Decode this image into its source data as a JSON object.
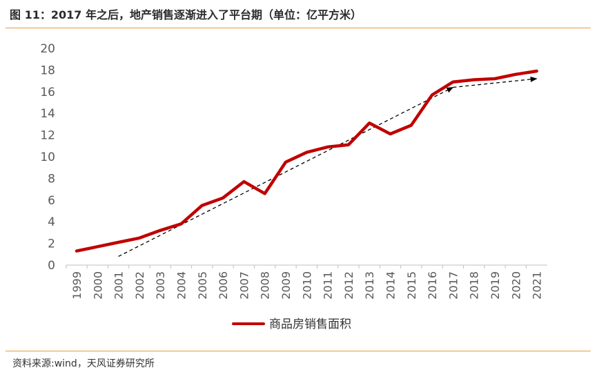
{
  "header": {
    "title": "图 11：2017 年之后，地产销售逐渐进入了平台期（单位：亿平方米）"
  },
  "footer": {
    "source": "资料来源:wind，天风证券研究所"
  },
  "colors": {
    "series": "#c00000",
    "accent_rule": "#e89a3c",
    "trend": "#000000"
  },
  "chart_data": {
    "type": "line",
    "title": "",
    "xlabel": "",
    "ylabel": "",
    "ylim": [
      0,
      20
    ],
    "yticks": [
      "0",
      "2",
      "4",
      "6",
      "8",
      "10",
      "12",
      "14",
      "16",
      "18",
      "20"
    ],
    "grid": false,
    "legend": "bottom",
    "categories": [
      "1999",
      "2000",
      "2001",
      "2002",
      "2003",
      "2004",
      "2005",
      "2006",
      "2007",
      "2008",
      "2009",
      "2010",
      "2011",
      "2012",
      "2013",
      "2014",
      "2015",
      "2016",
      "2017",
      "2018",
      "2019",
      "2020",
      "2021"
    ],
    "series": [
      {
        "name": "商品房销售面积",
        "values": [
          1.3,
          1.7,
          2.1,
          2.5,
          3.2,
          3.8,
          5.5,
          6.2,
          7.7,
          6.6,
          9.5,
          10.4,
          10.9,
          11.1,
          13.1,
          12.1,
          12.9,
          15.7,
          16.9,
          17.1,
          17.2,
          17.6,
          17.9
        ]
      }
    ],
    "trend_arrows": [
      {
        "from": {
          "x": "2001",
          "y": 0.8
        },
        "to": {
          "x": "2017",
          "y": 16.4
        }
      },
      {
        "from": {
          "x": "2017",
          "y": 16.4
        },
        "to": {
          "x": "2021",
          "y": 17.2
        }
      }
    ]
  }
}
